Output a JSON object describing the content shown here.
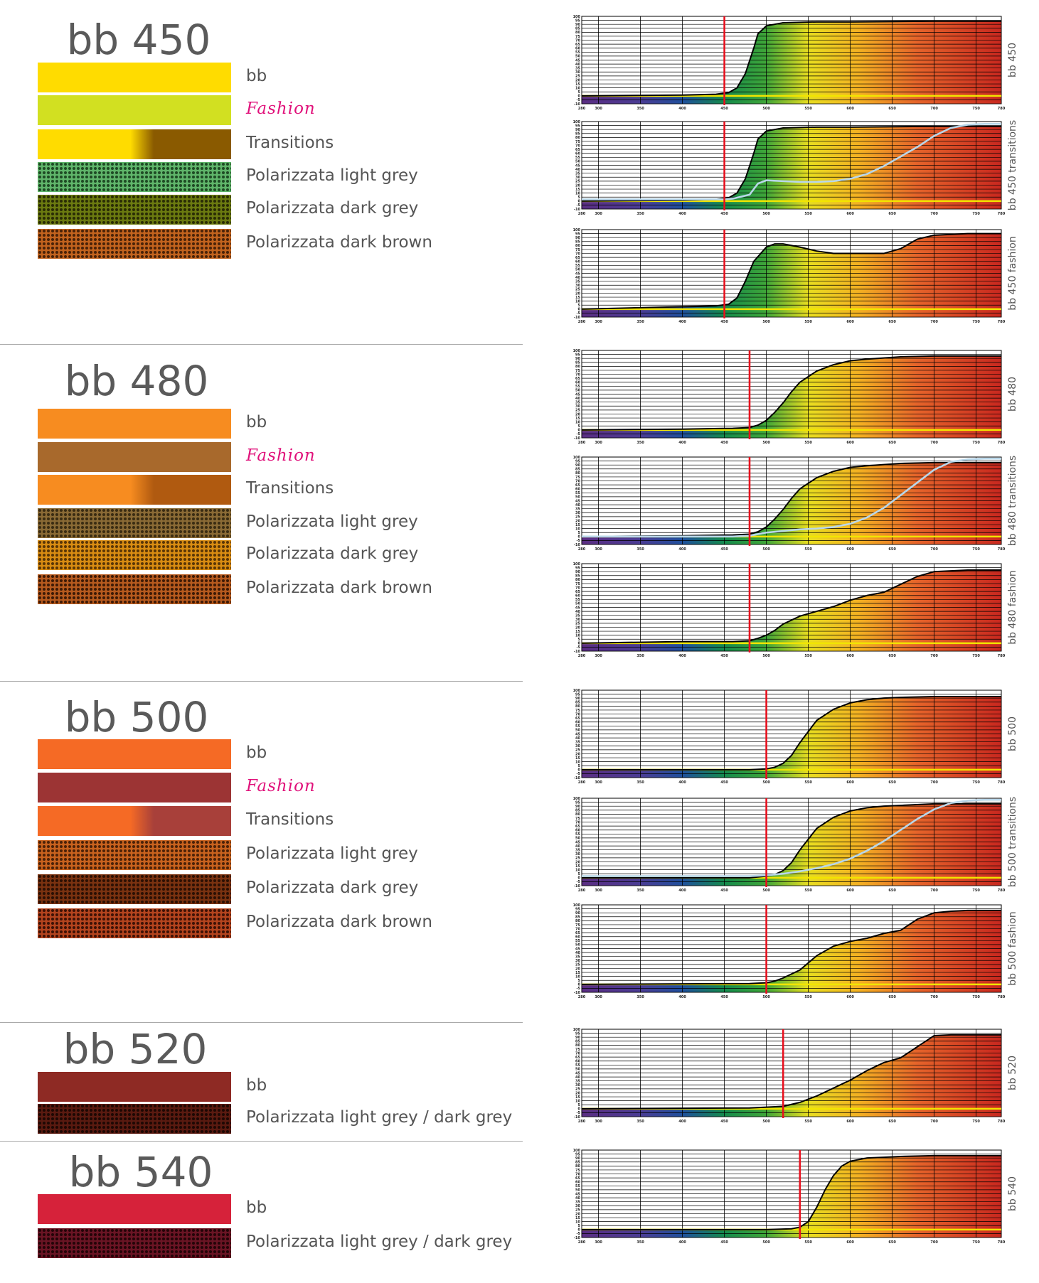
{
  "sections": [
    {
      "title": "bb 450",
      "swatches": [
        {
          "label": "bb",
          "style": "solid",
          "colors": [
            "#ffdc00"
          ]
        },
        {
          "label": "Fashion",
          "style": "fashion",
          "colors": [
            "#d2e021"
          ]
        },
        {
          "label": "Transitions",
          "style": "transition",
          "colors": [
            "#ffdc00",
            "#8a5a00"
          ]
        },
        {
          "label": "Polarizzata light grey",
          "style": "dots",
          "colors": [
            "#5fb56a",
            "#1f4a25"
          ]
        },
        {
          "label": "Polarizzata dark grey",
          "style": "dots",
          "colors": [
            "#6b7a10",
            "#2a2c05"
          ]
        },
        {
          "label": "Polarizzata dark brown",
          "style": "dots",
          "colors": [
            "#c2631e",
            "#4a2208"
          ]
        }
      ]
    },
    {
      "title": "bb 480",
      "swatches": [
        {
          "label": "bb",
          "style": "solid",
          "colors": [
            "#f78c20"
          ]
        },
        {
          "label": "Fashion",
          "style": "fashion",
          "colors": [
            "#a8692c"
          ]
        },
        {
          "label": "Transitions",
          "style": "transition",
          "colors": [
            "#f78c20",
            "#b05a10"
          ]
        },
        {
          "label": "Polarizzata light grey",
          "style": "dots",
          "colors": [
            "#8a6a35",
            "#3a2c12"
          ]
        },
        {
          "label": "Polarizzata dark grey",
          "style": "dots",
          "colors": [
            "#d88c12",
            "#5a3606"
          ]
        },
        {
          "label": "Polarizzata dark brown",
          "style": "dots",
          "colors": [
            "#b65a1e",
            "#3e1a06"
          ]
        }
      ]
    },
    {
      "title": "bb 500",
      "swatches": [
        {
          "label": "bb",
          "style": "solid",
          "colors": [
            "#f56a25"
          ]
        },
        {
          "label": "Fashion",
          "style": "fashion",
          "colors": [
            "#9c3434"
          ]
        },
        {
          "label": "Transitions",
          "style": "transition",
          "colors": [
            "#f56a25",
            "#a8403a"
          ]
        },
        {
          "label": "Polarizzata light grey",
          "style": "dots",
          "colors": [
            "#c8621e",
            "#4c2208"
          ]
        },
        {
          "label": "Polarizzata dark grey",
          "style": "dots",
          "colors": [
            "#7a3210",
            "#2c1004"
          ]
        },
        {
          "label": "Polarizzata dark brown",
          "style": "dots",
          "colors": [
            "#b4441e",
            "#3e1206"
          ]
        }
      ]
    },
    {
      "title": "bb 520",
      "swatches": [
        {
          "label": "bb",
          "style": "solid",
          "colors": [
            "#8e2a24"
          ]
        },
        {
          "label": "Polarizzata light grey / dark grey",
          "style": "dots",
          "colors": [
            "#5a1a10",
            "#1e0804"
          ]
        }
      ]
    },
    {
      "title": "bb 540",
      "swatches": [
        {
          "label": "bb",
          "style": "solid",
          "colors": [
            "#d6223a"
          ]
        },
        {
          "label": "Polarizzata light grey / dark grey",
          "style": "dots",
          "colors": [
            "#6a1424",
            "#240408"
          ]
        }
      ]
    }
  ],
  "chart_data": [
    {
      "type": "line",
      "label": "bb 450",
      "cutoff": 450,
      "xlim": [
        280,
        780
      ],
      "ylim": [
        -10,
        100
      ],
      "series": [
        {
          "style": "dark",
          "x": [
            280,
            400,
            440,
            455,
            465,
            475,
            485,
            490,
            500,
            520,
            560,
            600,
            700,
            780
          ],
          "y": [
            0,
            1,
            2,
            4,
            10,
            28,
            60,
            78,
            88,
            92,
            93,
            93,
            94,
            94
          ]
        }
      ]
    },
    {
      "type": "line",
      "label": "bb 450 transitions",
      "cutoff": 450,
      "xlim": [
        280,
        780
      ],
      "ylim": [
        -10,
        100
      ],
      "series": [
        {
          "style": "dark",
          "x": [
            280,
            400,
            440,
            455,
            465,
            475,
            485,
            490,
            500,
            520,
            560,
            600,
            700,
            780
          ],
          "y": [
            0,
            1,
            2,
            4,
            10,
            28,
            60,
            78,
            88,
            92,
            93,
            93,
            94,
            94
          ]
        },
        {
          "style": "clear",
          "x": [
            280,
            450,
            460,
            480,
            490,
            500,
            520,
            540,
            560,
            580,
            600,
            620,
            640,
            660,
            680,
            700,
            720,
            740,
            760,
            780
          ],
          "y": [
            2,
            2,
            3,
            8,
            22,
            26,
            25,
            24,
            24,
            25,
            28,
            34,
            44,
            56,
            68,
            82,
            92,
            96,
            97,
            97
          ]
        }
      ]
    },
    {
      "type": "line",
      "label": "bb 450 fashion",
      "cutoff": 450,
      "xlim": [
        280,
        780
      ],
      "ylim": [
        -10,
        100
      ],
      "series": [
        {
          "style": "dark",
          "x": [
            280,
            400,
            440,
            455,
            465,
            475,
            485,
            500,
            510,
            520,
            540,
            560,
            580,
            600,
            620,
            640,
            660,
            680,
            700,
            720,
            740,
            760,
            780
          ],
          "y": [
            0,
            3,
            4,
            6,
            14,
            35,
            60,
            78,
            82,
            82,
            78,
            73,
            70,
            70,
            70,
            70,
            76,
            88,
            93,
            94,
            95,
            95,
            95
          ]
        }
      ]
    },
    {
      "type": "line",
      "label": "bb 480",
      "cutoff": 480,
      "xlim": [
        280,
        780
      ],
      "ylim": [
        -10,
        100
      ],
      "series": [
        {
          "style": "dark",
          "x": [
            280,
            400,
            460,
            480,
            490,
            500,
            510,
            520,
            530,
            540,
            560,
            580,
            600,
            620,
            660,
            700,
            780
          ],
          "y": [
            0,
            1,
            2,
            3,
            6,
            12,
            22,
            34,
            48,
            60,
            74,
            82,
            87,
            89,
            92,
            93,
            93
          ]
        }
      ]
    },
    {
      "type": "line",
      "label": "bb 480 transitions",
      "cutoff": 480,
      "xlim": [
        280,
        780
      ],
      "ylim": [
        -10,
        100
      ],
      "series": [
        {
          "style": "dark",
          "x": [
            280,
            400,
            460,
            480,
            490,
            500,
            510,
            520,
            530,
            540,
            560,
            580,
            600,
            620,
            660,
            700,
            780
          ],
          "y": [
            0,
            1,
            2,
            3,
            6,
            12,
            22,
            34,
            48,
            60,
            74,
            82,
            87,
            89,
            92,
            93,
            93
          ]
        },
        {
          "style": "clear",
          "x": [
            280,
            460,
            480,
            490,
            500,
            520,
            540,
            560,
            580,
            600,
            620,
            640,
            660,
            680,
            700,
            720,
            740,
            760,
            780
          ],
          "y": [
            0,
            0,
            1,
            3,
            5,
            7,
            9,
            10,
            12,
            16,
            24,
            36,
            52,
            68,
            84,
            94,
            97,
            98,
            98
          ]
        }
      ]
    },
    {
      "type": "line",
      "label": "bb 480 fashion",
      "cutoff": 480,
      "xlim": [
        280,
        780
      ],
      "ylim": [
        -10,
        100
      ],
      "series": [
        {
          "style": "dark",
          "x": [
            280,
            400,
            460,
            480,
            490,
            500,
            510,
            520,
            540,
            560,
            580,
            600,
            620,
            640,
            660,
            680,
            700,
            720,
            740,
            760,
            780
          ],
          "y": [
            0,
            2,
            2,
            3,
            6,
            10,
            16,
            24,
            34,
            40,
            46,
            54,
            60,
            64,
            74,
            84,
            90,
            91,
            92,
            92,
            92
          ]
        }
      ]
    },
    {
      "type": "line",
      "label": "bb 500",
      "cutoff": 500,
      "xlim": [
        280,
        780
      ],
      "ylim": [
        -10,
        100
      ],
      "series": [
        {
          "style": "dark",
          "x": [
            280,
            480,
            500,
            510,
            520,
            530,
            540,
            560,
            580,
            600,
            620,
            640,
            660,
            700,
            780
          ],
          "y": [
            0,
            0,
            1,
            3,
            8,
            18,
            34,
            62,
            76,
            84,
            88,
            90,
            91,
            92,
            92
          ]
        }
      ]
    },
    {
      "type": "line",
      "label": "bb 500 transitions",
      "cutoff": 500,
      "xlim": [
        280,
        780
      ],
      "ylim": [
        -10,
        100
      ],
      "series": [
        {
          "style": "dark",
          "x": [
            280,
            480,
            500,
            510,
            520,
            530,
            540,
            560,
            580,
            600,
            620,
            640,
            660,
            700,
            780
          ],
          "y": [
            0,
            0,
            2,
            4,
            9,
            19,
            35,
            62,
            76,
            84,
            88,
            90,
            91,
            93,
            93
          ]
        },
        {
          "style": "clear",
          "x": [
            280,
            480,
            500,
            520,
            540,
            560,
            580,
            600,
            620,
            640,
            660,
            680,
            700,
            720,
            740,
            760,
            780
          ],
          "y": [
            2,
            2,
            3,
            5,
            8,
            12,
            17,
            24,
            34,
            46,
            60,
            74,
            86,
            94,
            97,
            98,
            98
          ]
        }
      ]
    },
    {
      "type": "line",
      "label": "bb 500 fashion",
      "cutoff": 500,
      "xlim": [
        280,
        780
      ],
      "ylim": [
        -10,
        100
      ],
      "series": [
        {
          "style": "dark",
          "x": [
            280,
            480,
            500,
            510,
            520,
            540,
            560,
            580,
            600,
            620,
            640,
            660,
            680,
            700,
            720,
            740,
            780
          ],
          "y": [
            0,
            1,
            2,
            4,
            8,
            18,
            36,
            48,
            54,
            58,
            64,
            68,
            82,
            90,
            92,
            93,
            93
          ]
        }
      ]
    },
    {
      "type": "line",
      "label": "bb 520",
      "cutoff": 520,
      "xlim": [
        280,
        780
      ],
      "ylim": [
        -10,
        100
      ],
      "series": [
        {
          "style": "dark",
          "x": [
            280,
            480,
            500,
            520,
            540,
            560,
            580,
            600,
            620,
            640,
            660,
            680,
            700,
            720,
            740,
            780
          ],
          "y": [
            0,
            1,
            2,
            3,
            8,
            16,
            26,
            36,
            48,
            58,
            64,
            78,
            92,
            93,
            93,
            93
          ]
        }
      ]
    },
    {
      "type": "line",
      "label": "bb 540",
      "cutoff": 540,
      "xlim": [
        280,
        780
      ],
      "ylim": [
        -10,
        100
      ],
      "series": [
        {
          "style": "dark",
          "x": [
            280,
            500,
            530,
            540,
            550,
            560,
            570,
            580,
            590,
            600,
            620,
            640,
            660,
            700,
            780
          ],
          "y": [
            0,
            0,
            1,
            3,
            10,
            28,
            50,
            68,
            80,
            86,
            90,
            91,
            92,
            93,
            93
          ]
        }
      ]
    }
  ],
  "axes": {
    "xticks": [
      "280",
      "300",
      "350",
      "400",
      "450",
      "500",
      "550",
      "600",
      "650",
      "700",
      "750",
      "780"
    ],
    "yticks": [
      "100",
      "95",
      "90",
      "85",
      "80",
      "75",
      "70",
      "65",
      "60",
      "55",
      "50",
      "45",
      "40",
      "35",
      "30",
      "25",
      "20",
      "15",
      "10",
      "5",
      "0",
      "-5",
      "-10"
    ]
  }
}
